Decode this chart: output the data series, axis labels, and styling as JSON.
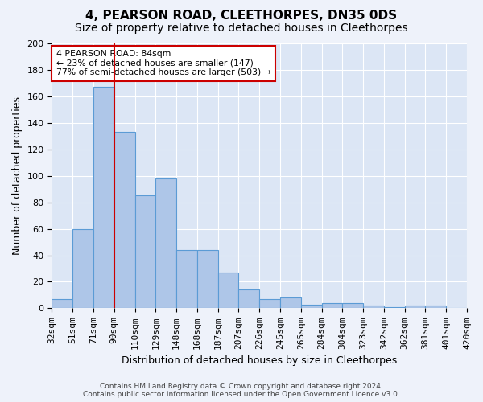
{
  "title1": "4, PEARSON ROAD, CLEETHORPES, DN35 0DS",
  "title2": "Size of property relative to detached houses in Cleethorpes",
  "xlabel": "Distribution of detached houses by size in Cleethorpes",
  "ylabel": "Number of detached properties",
  "footnote": "Contains HM Land Registry data © Crown copyright and database right 2024.\nContains public sector information licensed under the Open Government Licence v3.0.",
  "bin_labels": [
    "32sqm",
    "51sqm",
    "71sqm",
    "90sqm",
    "110sqm",
    "129sqm",
    "148sqm",
    "168sqm",
    "187sqm",
    "207sqm",
    "226sqm",
    "245sqm",
    "265sqm",
    "284sqm",
    "304sqm",
    "323sqm",
    "342sqm",
    "362sqm",
    "381sqm",
    "401sqm",
    "420sqm"
  ],
  "bar_values": [
    7,
    60,
    167,
    133,
    85,
    98,
    44,
    44,
    27,
    14,
    7,
    8,
    3,
    4,
    4,
    2,
    1,
    2,
    2,
    0
  ],
  "bar_color": "#aec6e8",
  "bar_edge_color": "#5b9bd5",
  "red_line_color": "#cc0000",
  "red_line_x": 2.5,
  "annotation_text": "4 PEARSON ROAD: 84sqm\n← 23% of detached houses are smaller (147)\n77% of semi-detached houses are larger (503) →",
  "annotation_box_color": "#ffffff",
  "annotation_box_edge": "#cc0000",
  "ylim": [
    0,
    200
  ],
  "yticks": [
    0,
    20,
    40,
    60,
    80,
    100,
    120,
    140,
    160,
    180,
    200
  ],
  "background_color": "#dce6f5",
  "grid_color": "#ffffff",
  "title_fontsize": 11,
  "subtitle_fontsize": 10,
  "tick_fontsize": 8,
  "ylabel_fontsize": 9,
  "xlabel_fontsize": 9
}
